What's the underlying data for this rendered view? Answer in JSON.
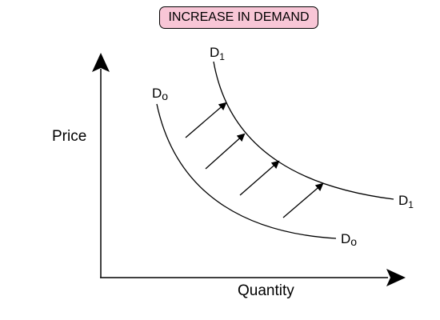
{
  "title": "INCREASE IN DEMAND",
  "title_bg": "#f8c6d6",
  "line_color": "#000000",
  "axes": {
    "y_label": "Price",
    "x_label": "Quantity"
  },
  "curves": {
    "d0": {
      "main": "D",
      "sub": "o"
    },
    "d1": {
      "main": "D",
      "sub": "1"
    }
  }
}
